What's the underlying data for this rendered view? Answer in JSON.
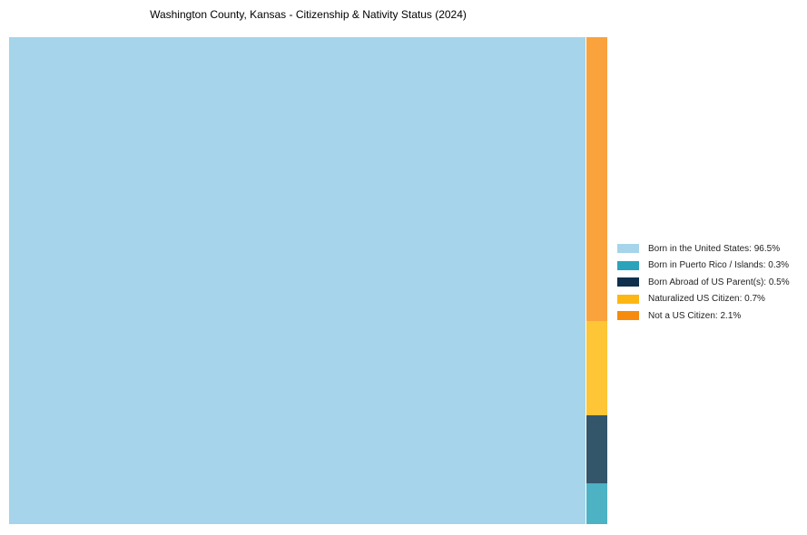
{
  "page": {
    "background_color": "#ffffff"
  },
  "chart_data": {
    "type": "treemap",
    "title": "Washington County, Kansas - Citizenship & Nativity Status (2024)",
    "legend_position": "right",
    "grid": false,
    "series": [
      {
        "label": "Born in the United States",
        "value": 96.5,
        "segment_color": "#a6d4ea",
        "legend_color": "#a6d4ea"
      },
      {
        "label": "Born in Puerto Rico / Islands",
        "value": 0.3,
        "segment_color": "#4cb2c4",
        "legend_color": "#2ba3ba"
      },
      {
        "label": "Born Abroad of US Parent(s)",
        "value": 0.5,
        "segment_color": "#33566b",
        "legend_color": "#0e304c"
      },
      {
        "label": "Naturalized US Citizen",
        "value": 0.7,
        "segment_color": "#fec636",
        "legend_color": "#fdb713"
      },
      {
        "label": "Not a US Citizen",
        "value": 2.1,
        "segment_color": "#faa23c",
        "legend_color": "#f78b0e"
      }
    ],
    "legend_labels": [
      "Born in the United States: 96.5%",
      "Born in Puerto Rico / Islands: 0.3%",
      "Born Abroad of US Parent(s): 0.5%",
      "Naturalized US Citizen: 0.7%",
      "Not a US Citizen: 2.1%"
    ],
    "strip_order_top_to_bottom": [
      "Not a US Citizen",
      "Naturalized US Citizen",
      "Born Abroad of US Parent(s)",
      "Born in Puerto Rico / Islands"
    ]
  }
}
